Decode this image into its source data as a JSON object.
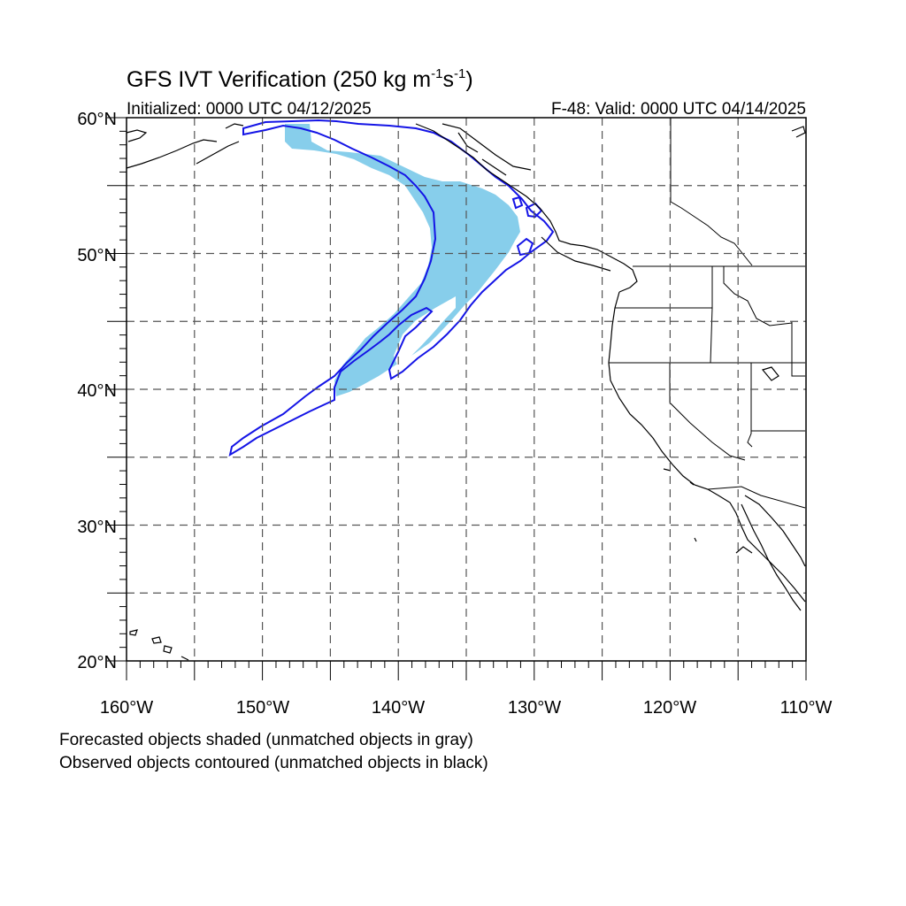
{
  "title": {
    "main": "GFS IVT Verification (250 kg m",
    "sup1": "-1",
    "mid": "s",
    "sup2": "-1",
    "end": ")"
  },
  "subtitle_left": "Initialized: 0000 UTC 04/12/2025",
  "subtitle_right": "F-48: Valid: 0000 UTC 04/14/2025",
  "lat_labels": [
    "60°N",
    "50°N",
    "40°N",
    "30°N",
    "20°N"
  ],
  "lon_labels": [
    "160°W",
    "150°W",
    "140°W",
    "130°W",
    "120°W",
    "110°W"
  ],
  "notes": [
    "Forecasted objects shaded (unmatched objects in gray)",
    "Observed objects contoured (unmatched objects in black)"
  ],
  "colors": {
    "forecast_fill": "#87ceeb",
    "observed_contour": "#1414e6",
    "coastline": "#000000",
    "grid": "#555555"
  },
  "map": {
    "lon_range": [
      -160,
      -110
    ],
    "lat_range": [
      20,
      60
    ],
    "grid_spacing_deg": 5,
    "grid_style": "dashed"
  }
}
